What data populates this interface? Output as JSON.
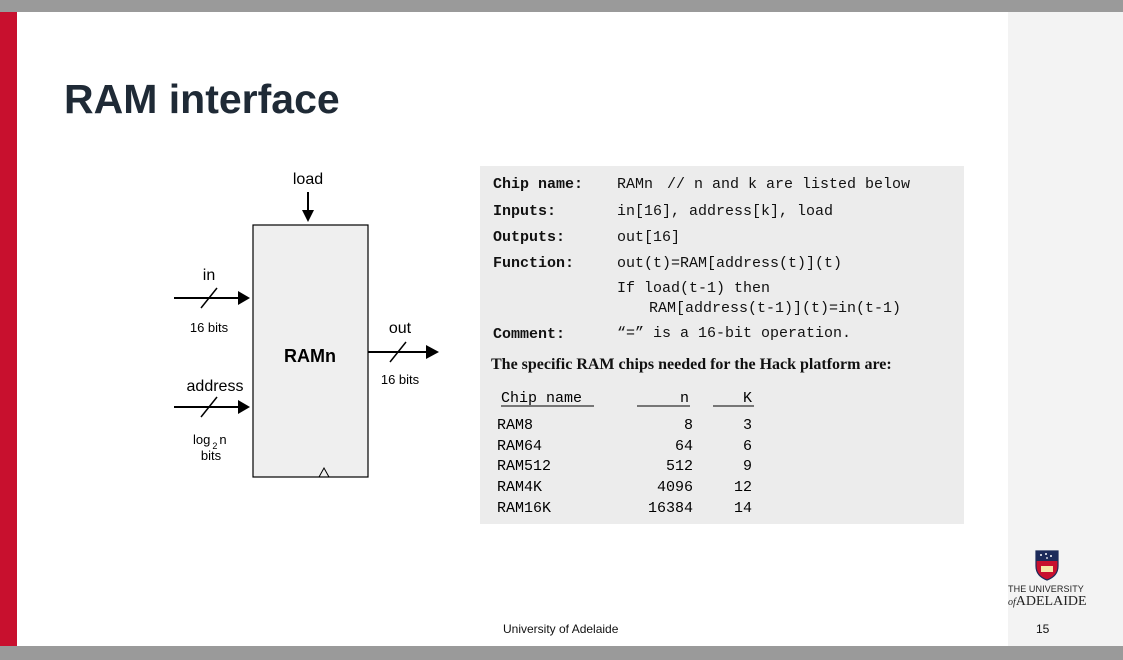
{
  "slide": {
    "title": "RAM interface",
    "footer": "University of Adelaide",
    "page_number": "15"
  },
  "diagram": {
    "chip_label": "RAMn",
    "load_label": "load",
    "in_label": "in",
    "in_bits": "16  bits",
    "address_label": "address",
    "address_bits_log": "log",
    "address_bits_sub": "2",
    "address_bits_n": "n",
    "address_bits_unit": "bits",
    "out_label": "out",
    "out_bits": "16  bits"
  },
  "spec": {
    "chip_name_label": "Chip name:",
    "chip_name_value": "RAMn",
    "chip_name_comment": "//  n and k are listed below",
    "inputs_label": "Inputs:",
    "inputs_value": "in[16], address[k], load",
    "outputs_label": "Outputs:",
    "outputs_value": "out[16]",
    "function_label": "Function:",
    "function_line1": "out(t)=RAM[address(t)](t)",
    "function_line2": "If load(t-1) then",
    "function_line3": "RAM[address(t-1)](t)=in(t-1)",
    "comment_label": "Comment:",
    "comment_value_quote": "“=”",
    "comment_value_rest": "is a 16-bit operation.",
    "intro": "The specific RAM chips needed for the Hack platform are:",
    "table": {
      "headers": [
        "Chip name",
        "n",
        "K"
      ],
      "rows": [
        [
          "RAM8",
          "8",
          "3"
        ],
        [
          "RAM64",
          "64",
          "6"
        ],
        [
          "RAM512",
          "512",
          "9"
        ],
        [
          "RAM4K",
          "4096",
          "12"
        ],
        [
          "RAM16K",
          "16384",
          "14"
        ]
      ]
    }
  },
  "logo": {
    "line1": "THE UNIVERSITY",
    "line2_of": "of",
    "line2_name": "ADELAIDE"
  },
  "colors": {
    "accent_red": "#c8102e",
    "bar_gray": "#9a9a9a",
    "spec_bg": "#ececec",
    "title": "#1f2a36"
  }
}
